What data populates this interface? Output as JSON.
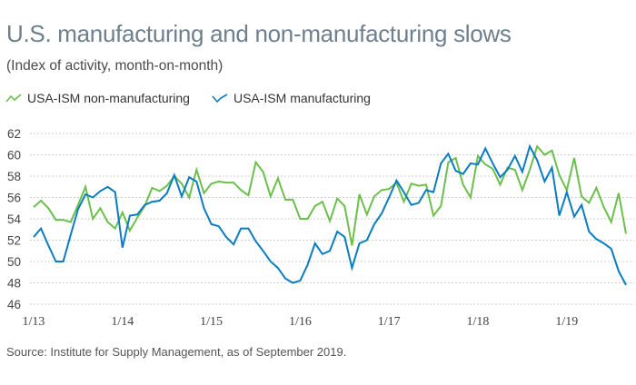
{
  "header": {
    "title": "U.S. manufacturing and non-manufacturing slows",
    "subtitle": "(Index of activity, month-on-month)"
  },
  "legend": [
    {
      "label": "USA-ISM non-manufacturing",
      "color": "#6cbf4b",
      "icon": "line-icon"
    },
    {
      "label": "USA-ISM manufacturing",
      "color": "#0a7cc1",
      "icon": "line-icon"
    }
  ],
  "footer": {
    "source": "Source: Institute for Supply Management, as of September 2019."
  },
  "chart_data": {
    "type": "line",
    "title": "U.S. manufacturing and non-manufacturing slows",
    "subtitle": "(Index of activity, month-on-month)",
    "xlabel": "",
    "ylabel": "",
    "ylim": [
      46,
      62
    ],
    "yticks": [
      62,
      60,
      58,
      56,
      54,
      52,
      50,
      48,
      46
    ],
    "grid": true,
    "legend_position": "top-left",
    "x_start": "2013-01",
    "x_end": "2019-09",
    "xtick_labels": [
      {
        "label": "1/13",
        "month_index": 0
      },
      {
        "label": "1/14",
        "month_index": 12
      },
      {
        "label": "1/15",
        "month_index": 24
      },
      {
        "label": "1/16",
        "month_index": 36
      },
      {
        "label": "1/17",
        "month_index": 48
      },
      {
        "label": "1/18",
        "month_index": 60
      },
      {
        "label": "1/19",
        "month_index": 72
      }
    ],
    "series": [
      {
        "name": "USA-ISM non-manufacturing",
        "color": "#6cbf4b",
        "values": [
          55.1,
          55.7,
          55.0,
          53.9,
          53.9,
          53.7,
          55.3,
          57.0,
          54.0,
          55.0,
          53.7,
          53.1,
          54.6,
          52.9,
          54.1,
          55.2,
          56.9,
          56.6,
          57.1,
          58.0,
          57.3,
          56.0,
          58.6,
          56.4,
          57.3,
          57.5,
          57.4,
          57.4,
          56.7,
          56.2,
          59.3,
          58.4,
          56.1,
          57.8,
          55.8,
          55.8,
          54.0,
          54.0,
          55.2,
          55.6,
          53.8,
          55.9,
          55.2,
          51.5,
          56.3,
          54.4,
          56.1,
          56.7,
          56.8,
          57.4,
          55.6,
          57.3,
          57.1,
          57.2,
          54.3,
          55.2,
          59.3,
          59.7,
          57.2,
          56.0,
          59.9,
          59.1,
          58.7,
          57.2,
          58.8,
          58.6,
          56.7,
          58.6,
          60.8,
          60.0,
          60.4,
          58.1,
          56.7,
          59.7,
          56.1,
          55.5,
          56.9,
          55.1,
          53.7,
          56.4,
          52.6
        ]
      },
      {
        "name": "USA-ISM manufacturing",
        "color": "#0a7cc1",
        "values": [
          52.3,
          53.1,
          51.5,
          50.0,
          50.0,
          52.5,
          54.9,
          56.3,
          56.0,
          56.6,
          57.0,
          56.5,
          51.3,
          54.3,
          54.4,
          55.3,
          55.6,
          55.7,
          56.4,
          58.1,
          56.1,
          57.9,
          57.5,
          55.0,
          53.5,
          53.3,
          52.3,
          51.6,
          53.1,
          53.1,
          51.9,
          51.0,
          50.0,
          49.4,
          48.4,
          48.0,
          48.2,
          49.7,
          51.7,
          50.7,
          51.0,
          52.8,
          52.3,
          49.4,
          51.7,
          52.0,
          53.5,
          54.5,
          56.0,
          57.6,
          56.5,
          55.3,
          55.5,
          56.7,
          56.5,
          59.2,
          60.1,
          58.5,
          58.2,
          59.2,
          59.1,
          60.6,
          59.2,
          57.9,
          58.6,
          59.9,
          58.4,
          60.8,
          59.5,
          57.5,
          58.8,
          54.3,
          56.5,
          54.2,
          55.3,
          52.8,
          52.1,
          51.7,
          51.2,
          49.1,
          47.8
        ]
      }
    ]
  }
}
